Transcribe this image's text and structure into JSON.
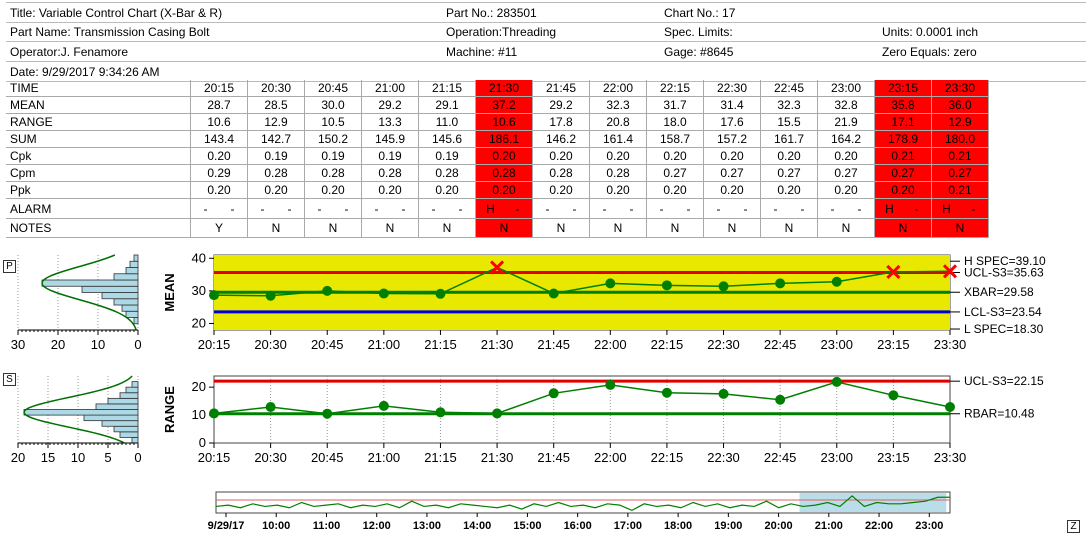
{
  "header": {
    "title": "Title: Variable Control Chart (X-Bar & R)",
    "part_no": "Part No.: 283501",
    "chart_no": "Chart No.: 17",
    "part_name": "Part Name: Transmission Casing Bolt",
    "operation": "Operation:Threading",
    "spec_limits": "Spec. Limits:",
    "units": "Units: 0.0001 inch",
    "operator": "Operator:J. Fenamore",
    "machine": "Machine: #11",
    "gage": "Gage: #8645",
    "zero_equals": "Zero Equals: zero",
    "date": "Date: 9/29/2017 9:34:26 AM"
  },
  "table": {
    "row_labels": [
      "TIME",
      "MEAN",
      "RANGE",
      "SUM",
      "Cpk",
      "Cpm",
      "Ppk",
      "ALARM",
      "NOTES"
    ],
    "columns": [
      {
        "time": "20:15",
        "mean": "28.7",
        "range": "10.6",
        "sum": "143.4",
        "cpk": "0.20",
        "cpm": "0.29",
        "ppk": "0.20",
        "alarm": [
          "-",
          "-"
        ],
        "note": "Y",
        "alert": false
      },
      {
        "time": "20:30",
        "mean": "28.5",
        "range": "12.9",
        "sum": "142.7",
        "cpk": "0.19",
        "cpm": "0.28",
        "ppk": "0.20",
        "alarm": [
          "-",
          "-"
        ],
        "note": "N",
        "alert": false
      },
      {
        "time": "20:45",
        "mean": "30.0",
        "range": "10.5",
        "sum": "150.2",
        "cpk": "0.19",
        "cpm": "0.28",
        "ppk": "0.20",
        "alarm": [
          "-",
          "-"
        ],
        "note": "N",
        "alert": false
      },
      {
        "time": "21:00",
        "mean": "29.2",
        "range": "13.3",
        "sum": "145.9",
        "cpk": "0.19",
        "cpm": "0.28",
        "ppk": "0.20",
        "alarm": [
          "-",
          "-"
        ],
        "note": "N",
        "alert": false
      },
      {
        "time": "21:15",
        "mean": "29.1",
        "range": "11.0",
        "sum": "145.6",
        "cpk": "0.19",
        "cpm": "0.28",
        "ppk": "0.20",
        "alarm": [
          "-",
          "-"
        ],
        "note": "N",
        "alert": false
      },
      {
        "time": "21:30",
        "mean": "37.2",
        "range": "10.6",
        "sum": "186.1",
        "cpk": "0.20",
        "cpm": "0.28",
        "ppk": "0.20",
        "alarm": [
          "H",
          "-"
        ],
        "note": "N",
        "alert": true
      },
      {
        "time": "21:45",
        "mean": "29.2",
        "range": "17.8",
        "sum": "146.2",
        "cpk": "0.20",
        "cpm": "0.28",
        "ppk": "0.20",
        "alarm": [
          "-",
          "-"
        ],
        "note": "N",
        "alert": false
      },
      {
        "time": "22:00",
        "mean": "32.3",
        "range": "20.8",
        "sum": "161.4",
        "cpk": "0.20",
        "cpm": "0.28",
        "ppk": "0.20",
        "alarm": [
          "-",
          "-"
        ],
        "note": "N",
        "alert": false
      },
      {
        "time": "22:15",
        "mean": "31.7",
        "range": "18.0",
        "sum": "158.7",
        "cpk": "0.20",
        "cpm": "0.27",
        "ppk": "0.20",
        "alarm": [
          "-",
          "-"
        ],
        "note": "N",
        "alert": false
      },
      {
        "time": "22:30",
        "mean": "31.4",
        "range": "17.6",
        "sum": "157.2",
        "cpk": "0.20",
        "cpm": "0.27",
        "ppk": "0.20",
        "alarm": [
          "-",
          "-"
        ],
        "note": "N",
        "alert": false
      },
      {
        "time": "22:45",
        "mean": "32.3",
        "range": "15.5",
        "sum": "161.7",
        "cpk": "0.20",
        "cpm": "0.27",
        "ppk": "0.20",
        "alarm": [
          "-",
          "-"
        ],
        "note": "N",
        "alert": false
      },
      {
        "time": "23:00",
        "mean": "32.8",
        "range": "21.9",
        "sum": "164.2",
        "cpk": "0.20",
        "cpm": "0.27",
        "ppk": "0.20",
        "alarm": [
          "-",
          "-"
        ],
        "note": "N",
        "alert": false
      },
      {
        "time": "23:15",
        "mean": "35.8",
        "range": "17.1",
        "sum": "178.9",
        "cpk": "0.21",
        "cpm": "0.27",
        "ppk": "0.20",
        "alarm": [
          "H",
          "-"
        ],
        "note": "N",
        "alert": true
      },
      {
        "time": "23:30",
        "mean": "36.0",
        "range": "12.9",
        "sum": "180.0",
        "cpk": "0.21",
        "cpm": "0.27",
        "ppk": "0.21",
        "alarm": [
          "H",
          "-"
        ],
        "note": "N",
        "alert": true
      }
    ]
  },
  "colors": {
    "alert": "#ff0000",
    "line": "#008000",
    "point": "#008000",
    "ucl": "#e00000",
    "lcl": "#0000dd",
    "spec": "#e8e800",
    "center": "#008000",
    "hist_fill": "#add8e6"
  },
  "panel_labels": {
    "mean_box": "P",
    "range_box": "S",
    "zoom_box": "Z"
  },
  "chart_data": [
    {
      "type": "line",
      "ylabel": "MEAN",
      "categories": [
        "20:15",
        "20:30",
        "20:45",
        "21:00",
        "21:15",
        "21:30",
        "21:45",
        "22:00",
        "22:15",
        "22:30",
        "22:45",
        "23:00",
        "23:15",
        "23:30"
      ],
      "values": [
        28.7,
        28.5,
        30.0,
        29.2,
        29.1,
        37.2,
        29.2,
        32.3,
        31.7,
        31.4,
        32.3,
        32.8,
        35.8,
        36.0
      ],
      "ylim": [
        18,
        41
      ],
      "yticks": [
        "20",
        "30",
        "40"
      ],
      "limits": [
        {
          "label": "H SPEC=39.10",
          "value": 39.1,
          "kind": "spec"
        },
        {
          "label": "UCL-S3=35.63",
          "value": 35.63,
          "kind": "ucl"
        },
        {
          "label": "XBAR=29.58",
          "value": 29.58,
          "kind": "center"
        },
        {
          "label": "LCL-S3=23.54",
          "value": 23.54,
          "kind": "lcl"
        },
        {
          "label": "L SPEC=18.30",
          "value": 18.3,
          "kind": "spec"
        }
      ]
    },
    {
      "type": "line",
      "ylabel": "RANGE",
      "categories": [
        "20:15",
        "20:30",
        "20:45",
        "21:00",
        "21:15",
        "21:30",
        "21:45",
        "22:00",
        "22:15",
        "22:30",
        "22:45",
        "23:00",
        "23:15",
        "23:30"
      ],
      "values": [
        10.6,
        12.9,
        10.5,
        13.3,
        11.0,
        10.6,
        17.8,
        20.8,
        18.0,
        17.6,
        15.5,
        21.9,
        17.1,
        12.9
      ],
      "ylim": [
        0,
        24
      ],
      "yticks": [
        "0",
        "10",
        "20"
      ],
      "limits": [
        {
          "label": "UCL-S3=22.15",
          "value": 22.15,
          "kind": "ucl"
        },
        {
          "label": "RBAR=10.48",
          "value": 10.48,
          "kind": "center"
        }
      ]
    },
    {
      "type": "bar",
      "orientation": "horizontal-histogram",
      "xticks": [
        "30",
        "20",
        "10",
        "0"
      ],
      "xlim": [
        30,
        0
      ],
      "bins_ylim": [
        18,
        41
      ],
      "counts": [
        0,
        1,
        3,
        4,
        6,
        9,
        14,
        24,
        6,
        3,
        2,
        1
      ]
    },
    {
      "type": "bar",
      "orientation": "horizontal-histogram",
      "xticks": [
        "20",
        "15",
        "10",
        "5",
        "0"
      ],
      "xlim": [
        20,
        0
      ],
      "bins_ylim": [
        0,
        24
      ],
      "counts": [
        1,
        3,
        4,
        6,
        9,
        19,
        7,
        5,
        3,
        2,
        1,
        0
      ]
    },
    {
      "type": "line",
      "overview": true,
      "xticks": [
        "9/29/17",
        "10:00",
        "11:00",
        "12:00",
        "13:00",
        "14:00",
        "15:00",
        "16:00",
        "17:00",
        "18:00",
        "19:00",
        "20:00",
        "21:00",
        "22:00",
        "23:00"
      ],
      "values": [
        29,
        30,
        28,
        31,
        29,
        30,
        28,
        32,
        29,
        30,
        31,
        28,
        30,
        29,
        31,
        28,
        33,
        29,
        30,
        28,
        31,
        30,
        29,
        28,
        30,
        27,
        31,
        29,
        32,
        29,
        30,
        28,
        31,
        30,
        26,
        31,
        29,
        30,
        28,
        32,
        29,
        31,
        28,
        30,
        29,
        33,
        28,
        31,
        29,
        30,
        32,
        29,
        37,
        29,
        32,
        31,
        31,
        32,
        33,
        36,
        36
      ]
    }
  ]
}
